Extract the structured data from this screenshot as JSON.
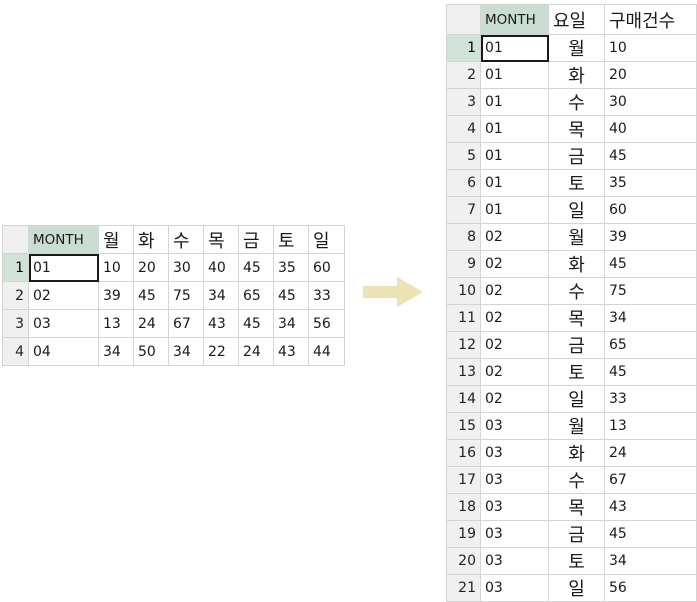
{
  "left_table": {
    "headers": [
      "MONTH",
      "월",
      "화",
      "수",
      "목",
      "금",
      "토",
      "일"
    ],
    "row_numbers": [
      "1",
      "2",
      "3",
      "4"
    ],
    "rows": [
      [
        "01",
        "10",
        "20",
        "30",
        "40",
        "45",
        "35",
        "60"
      ],
      [
        "02",
        "39",
        "45",
        "75",
        "34",
        "65",
        "45",
        "33"
      ],
      [
        "03",
        "13",
        "24",
        "67",
        "43",
        "45",
        "34",
        "56"
      ],
      [
        "04",
        "34",
        "50",
        "34",
        "22",
        "24",
        "43",
        "44"
      ]
    ]
  },
  "right_table": {
    "headers": [
      "MONTH",
      "요일",
      "구매건수"
    ],
    "row_numbers": [
      "1",
      "2",
      "3",
      "4",
      "5",
      "6",
      "7",
      "8",
      "9",
      "10",
      "11",
      "12",
      "13",
      "14",
      "15",
      "16",
      "17",
      "18",
      "19",
      "20",
      "21"
    ],
    "rows": [
      [
        "01",
        "월",
        "10"
      ],
      [
        "01",
        "화",
        "20"
      ],
      [
        "01",
        "수",
        "30"
      ],
      [
        "01",
        "목",
        "40"
      ],
      [
        "01",
        "금",
        "45"
      ],
      [
        "01",
        "토",
        "35"
      ],
      [
        "01",
        "일",
        "60"
      ],
      [
        "02",
        "월",
        "39"
      ],
      [
        "02",
        "화",
        "45"
      ],
      [
        "02",
        "수",
        "75"
      ],
      [
        "02",
        "목",
        "34"
      ],
      [
        "02",
        "금",
        "65"
      ],
      [
        "02",
        "토",
        "45"
      ],
      [
        "02",
        "일",
        "33"
      ],
      [
        "03",
        "월",
        "13"
      ],
      [
        "03",
        "화",
        "24"
      ],
      [
        "03",
        "수",
        "67"
      ],
      [
        "03",
        "목",
        "43"
      ],
      [
        "03",
        "금",
        "45"
      ],
      [
        "03",
        "토",
        "34"
      ],
      [
        "03",
        "일",
        "56"
      ]
    ]
  },
  "arrow": {
    "icon": "right-arrow-icon",
    "color": "#ece3b4"
  },
  "colors": {
    "header_accent": "#c9ddd2",
    "active_rownum": "#cfe3d7",
    "rownum_bg": "#f0f0f0",
    "grid_line": "#d4d4d4"
  }
}
